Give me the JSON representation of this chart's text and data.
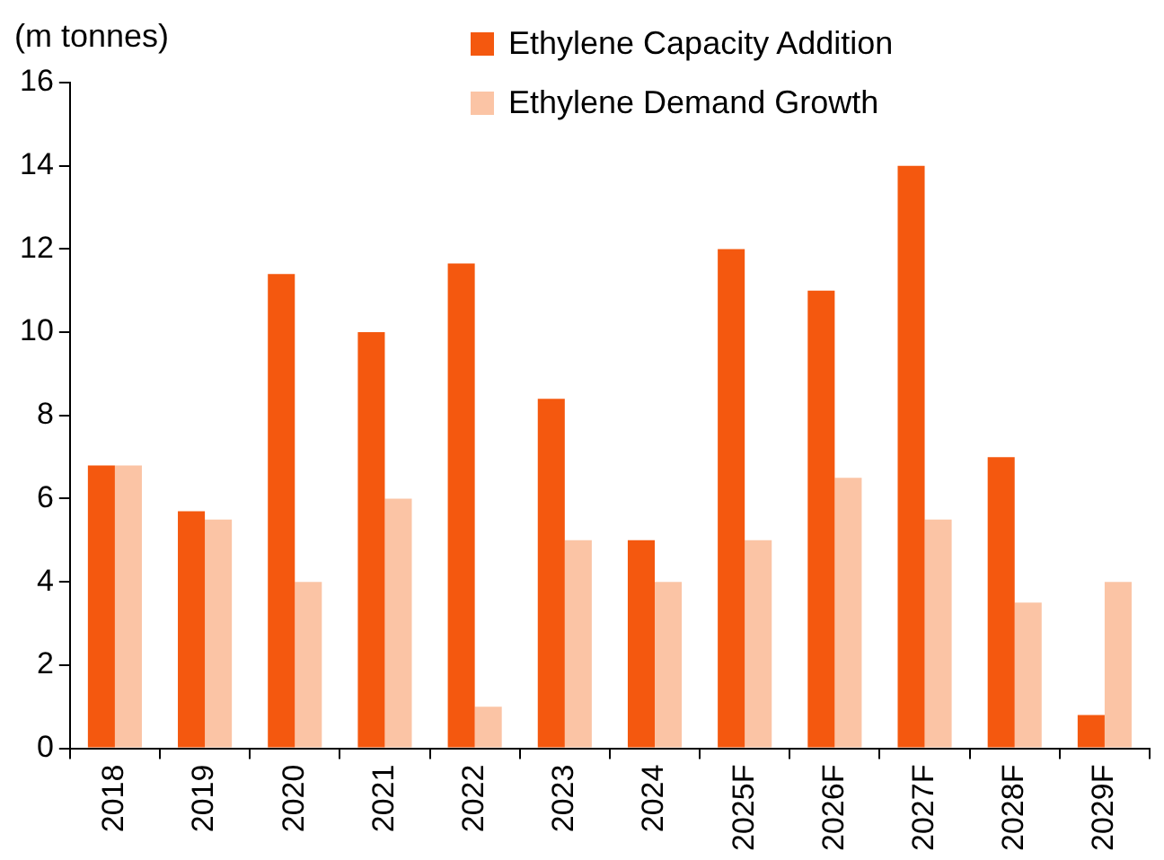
{
  "chart_data": {
    "type": "bar",
    "ylabel": "(m tonnes)",
    "categories": [
      "2018",
      "2019",
      "2020",
      "2021",
      "2022",
      "2023",
      "2024",
      "2025F",
      "2026F",
      "2027F",
      "2028F",
      "2029F"
    ],
    "series": [
      {
        "name": "Ethylene Capacity Addition",
        "color": "#f4580f",
        "values": [
          6.8,
          5.7,
          11.4,
          10,
          11.65,
          8.4,
          5,
          12,
          11,
          14,
          7,
          0.8
        ]
      },
      {
        "name": "Ethylene Demand Growth",
        "color": "#fbc4a5",
        "values": [
          6.8,
          5.5,
          4,
          6,
          1,
          5,
          4,
          5,
          6.5,
          5.5,
          3.5,
          4
        ]
      }
    ],
    "ylim": [
      0,
      16
    ],
    "yticks": [
      0,
      2,
      4,
      6,
      8,
      10,
      12,
      14,
      16
    ],
    "grid": false,
    "legend": "top right"
  }
}
